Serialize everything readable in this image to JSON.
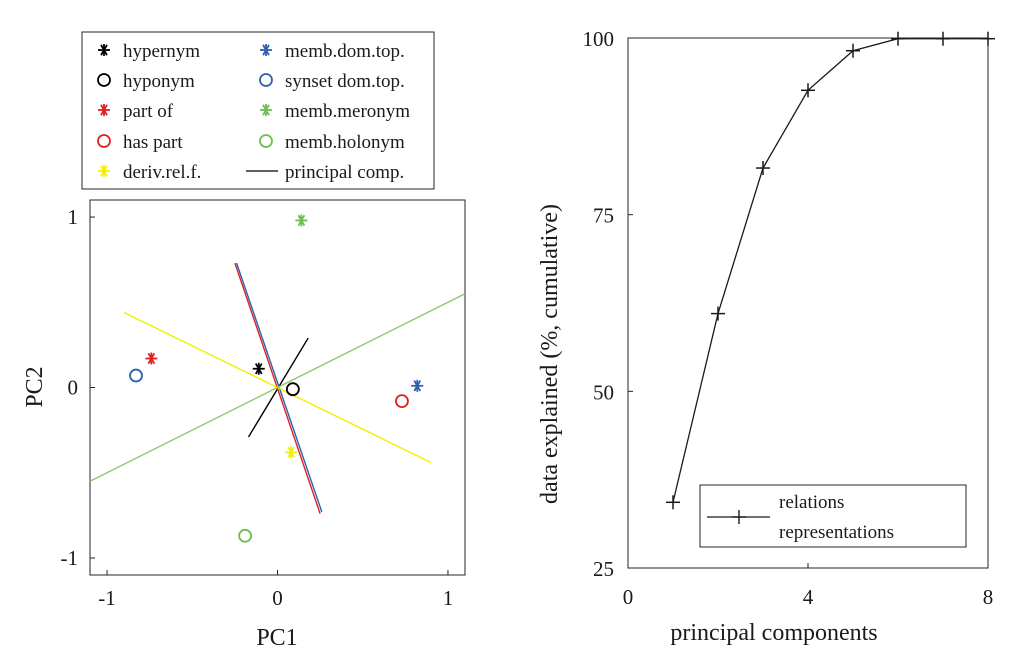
{
  "chart_data": [
    {
      "type": "scatter",
      "xlabel": "PC1",
      "ylabel": "PC2",
      "xlim": [
        -1.1,
        1.1
      ],
      "ylim": [
        -1.1,
        1.1
      ],
      "xticks": [
        -1,
        0,
        1
      ],
      "yticks": [
        -1,
        0,
        1
      ],
      "xtick_labels": [
        "-1",
        "0",
        "1"
      ],
      "ytick_labels": [
        "-1",
        "0",
        "1"
      ],
      "grid": false,
      "legend_position": "top",
      "series": [
        {
          "name": "hypernym",
          "marker": "star",
          "color": "#000000",
          "x": -0.11,
          "y": 0.11
        },
        {
          "name": "hyponym",
          "marker": "circle",
          "color": "#000000",
          "x": 0.09,
          "y": -0.01
        },
        {
          "name": "part of",
          "marker": "star",
          "color": "#e02020",
          "x": -0.74,
          "y": 0.17
        },
        {
          "name": "has part",
          "marker": "circle",
          "color": "#e02020",
          "x": 0.73,
          "y": -0.08
        },
        {
          "name": "deriv.rel.f.",
          "marker": "star",
          "color": "#f0f000",
          "x": 0.08,
          "y": -0.38
        },
        {
          "name": "memb.dom.top.",
          "marker": "star",
          "color": "#2f5fb0",
          "x": 0.82,
          "y": 0.01
        },
        {
          "name": "synset dom.top.",
          "marker": "circle",
          "color": "#2f5fb0",
          "x": -0.83,
          "y": 0.07
        },
        {
          "name": "memb.meronym",
          "marker": "star",
          "color": "#6cbf50",
          "x": 0.14,
          "y": 0.98
        },
        {
          "name": "memb.holonym",
          "marker": "circle",
          "color": "#6cbf50",
          "x": -0.19,
          "y": -0.87
        }
      ],
      "lines": [
        {
          "name": "principal comp.",
          "color": "#000000",
          "x": [
            -0.17,
            0.18
          ],
          "y": [
            -0.29,
            0.29
          ]
        },
        {
          "color": "#e02020",
          "x": [
            -0.25,
            0.25
          ],
          "y": [
            0.73,
            -0.74
          ]
        },
        {
          "color": "#2f5fb0",
          "x": [
            -0.24,
            0.26
          ],
          "y": [
            0.73,
            -0.73
          ]
        },
        {
          "color": "#f0f000",
          "x": [
            -0.9,
            0.9
          ],
          "y": [
            0.44,
            -0.44
          ]
        },
        {
          "color": "#8cc86c",
          "x": [
            -1.1,
            1.1
          ],
          "y": [
            -0.55,
            0.55
          ]
        }
      ],
      "legend": [
        {
          "label": "hypernym",
          "marker": "star",
          "color": "#000000"
        },
        {
          "label": "hyponym",
          "marker": "circle",
          "color": "#000000"
        },
        {
          "label": "part of",
          "marker": "star",
          "color": "#e02020"
        },
        {
          "label": "has part",
          "marker": "circle",
          "color": "#e02020"
        },
        {
          "label": "deriv.rel.f.",
          "marker": "star",
          "color": "#f0f000"
        },
        {
          "label": "memb.dom.top.",
          "marker": "star",
          "color": "#2f5fb0"
        },
        {
          "label": "synset dom.top.",
          "marker": "circle",
          "color": "#2f5fb0"
        },
        {
          "label": "memb.meronym",
          "marker": "star",
          "color": "#6cbf50"
        },
        {
          "label": "memb.holonym",
          "marker": "circle",
          "color": "#6cbf50"
        },
        {
          "label": "principal comp.",
          "marker": "line",
          "color": "#000000"
        }
      ]
    },
    {
      "type": "line",
      "xlabel": "principal components",
      "ylabel": "data explained (%, cumulative)",
      "xlim": [
        0,
        8
      ],
      "ylim": [
        25,
        100
      ],
      "xticks": [
        0,
        4,
        8
      ],
      "yticks": [
        25,
        50,
        75,
        100
      ],
      "xtick_labels": [
        "0",
        "4",
        "8"
      ],
      "ytick_labels": [
        "25",
        "50",
        "75",
        "100"
      ],
      "grid": false,
      "legend_position": "bottom-right",
      "legend_lines": [
        "relations",
        "representations"
      ],
      "series": [
        {
          "color": "#1a1a1a",
          "marker": "plus",
          "x": [
            1,
            2,
            3,
            4,
            5,
            6,
            7,
            8
          ],
          "y": [
            34.3,
            61.0,
            81.6,
            92.6,
            98.2,
            99.9,
            99.9,
            99.9
          ]
        }
      ]
    }
  ]
}
